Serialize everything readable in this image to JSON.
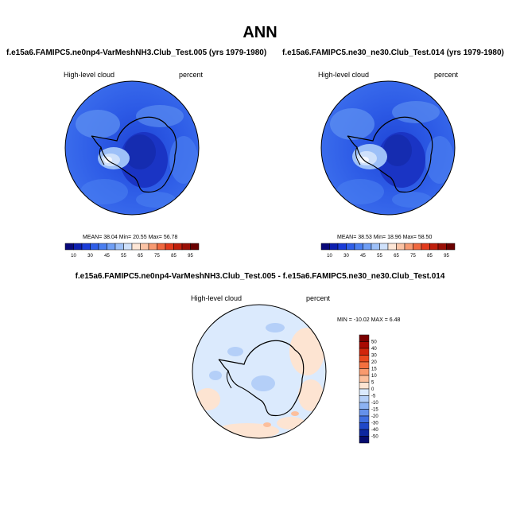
{
  "page": {
    "title": "ANN"
  },
  "panels": [
    {
      "case": "f.e15a6.FAMIPC5.ne0np4-VarMeshNH3.Club_Test.005 (yrs 1979-1980)",
      "variable": "High-level cloud",
      "units": "percent",
      "stats": {
        "mean_label": "MEAN=",
        "mean": "38.04",
        "min_label": "Min=",
        "min": "20.55",
        "max_label": "Max=",
        "max": "56.78"
      }
    },
    {
      "case": "f.e15a6.FAMIPC5.ne30_ne30.Club_Test.014 (yrs 1979-1980)",
      "variable": "High-level cloud",
      "units": "percent",
      "stats": {
        "mean_label": "MEAN=",
        "mean": "38.53",
        "min_label": "Min=",
        "min": "18.96",
        "max_label": "Max=",
        "max": "58.50"
      }
    }
  ],
  "diff_panel": {
    "title": "f.e15a6.FAMIPC5.ne0np4-VarMeshNH3.Club_Test.005 - f.e15a6.FAMIPC5.ne30_ne30.Club_Test.014",
    "variable": "High-level cloud",
    "units": "percent",
    "minmax": "MIN = -10.02 MAX =   6.48"
  },
  "colorbar_main": {
    "labels": [
      "10",
      "30",
      "45",
      "55",
      "65",
      "75",
      "85",
      "95"
    ],
    "colors": [
      "#08087a",
      "#0d1fb0",
      "#1a3cd8",
      "#2f5ee8",
      "#4a7ef0",
      "#6f9ef5",
      "#9dc0f8",
      "#cfe1fb",
      "#fde6d6",
      "#fbc3a5",
      "#f79a72",
      "#f0683f",
      "#e23a1c",
      "#c01f0c",
      "#9a0f06",
      "#6a0000"
    ]
  },
  "colorbar_diff": {
    "labels": [
      "50",
      "40",
      "30",
      "20",
      "15",
      "10",
      "5",
      "0",
      "-5",
      "-10",
      "-15",
      "-20",
      "-30",
      "-40",
      "-50"
    ],
    "colors": [
      "#7a0000",
      "#a80a02",
      "#d1260b",
      "#ea4a1e",
      "#f4703f",
      "#f99a6e",
      "#fcbf9c",
      "#fde4d2",
      "#dbeafd",
      "#b4cff8",
      "#8cb2f2",
      "#6591ea",
      "#3f6ee0",
      "#1f48c8",
      "#0d27a0",
      "#060c6e"
    ]
  }
}
